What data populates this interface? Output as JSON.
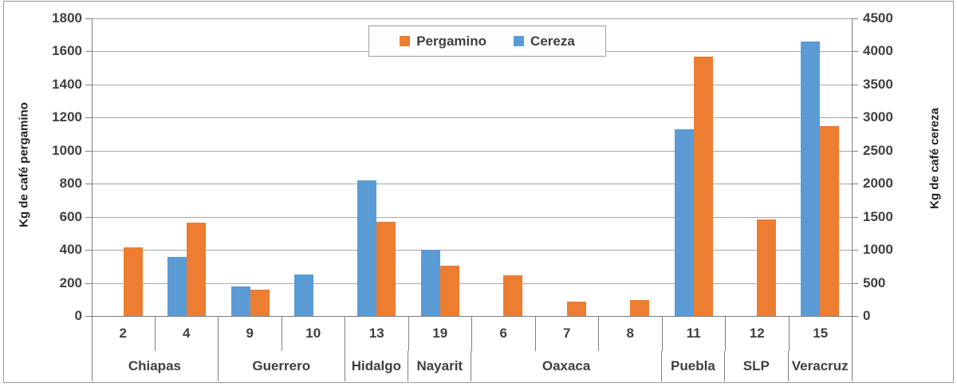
{
  "chart_data": {
    "type": "bar",
    "title": "",
    "legend": {
      "position": "top-center",
      "entries": [
        {
          "label": "Pergamino",
          "color": "#ED7D31"
        },
        {
          "label": "Cereza",
          "color": "#5B9BD5"
        }
      ]
    },
    "left_axis": {
      "title": "Kg de café pergamino",
      "min": 0,
      "max": 1800,
      "step": 200,
      "ticks": [
        "1800",
        "1600",
        "1400",
        "1200",
        "1000",
        "800",
        "600",
        "400",
        "200",
        "0"
      ]
    },
    "right_axis": {
      "title": "Kg de café cereza",
      "min": 0,
      "max": 4500,
      "step": 500,
      "ticks": [
        "4500",
        "4000",
        "3500",
        "3000",
        "2500",
        "2000",
        "1500",
        "1000",
        "500",
        "0"
      ]
    },
    "categories": [
      "2",
      "4",
      "9",
      "10",
      "13",
      "19",
      "6",
      "7",
      "8",
      "11",
      "12",
      "15"
    ],
    "groups": [
      {
        "label": "Chiapas",
        "span": 2
      },
      {
        "label": "Guerrero",
        "span": 2
      },
      {
        "label": "Hidalgo",
        "span": 1
      },
      {
        "label": "Nayarit",
        "span": 1
      },
      {
        "label": "Oaxaca",
        "span": 3
      },
      {
        "label": "Puebla",
        "span": 1
      },
      {
        "label": "SLP",
        "span": 1
      },
      {
        "label": "Veracruz",
        "span": 1
      }
    ],
    "series": [
      {
        "name": "Pergamino",
        "color": "#ED7D31",
        "axis": "left",
        "values": [
          415,
          565,
          160,
          null,
          570,
          305,
          245,
          85,
          95,
          1570,
          585,
          1150
        ]
      },
      {
        "name": "Cereza",
        "color": "#5B9BD5",
        "axis": "right",
        "values": [
          null,
          890,
          450,
          630,
          2050,
          1000,
          null,
          null,
          null,
          2820,
          null,
          4150
        ]
      }
    ],
    "bar_draw_order": [
      "Cereza",
      "Pergamino"
    ],
    "grid": true,
    "grid_color": "#A6A6A6",
    "axis_color": "#7F7F7F",
    "text_color": "#3F3F3F"
  }
}
